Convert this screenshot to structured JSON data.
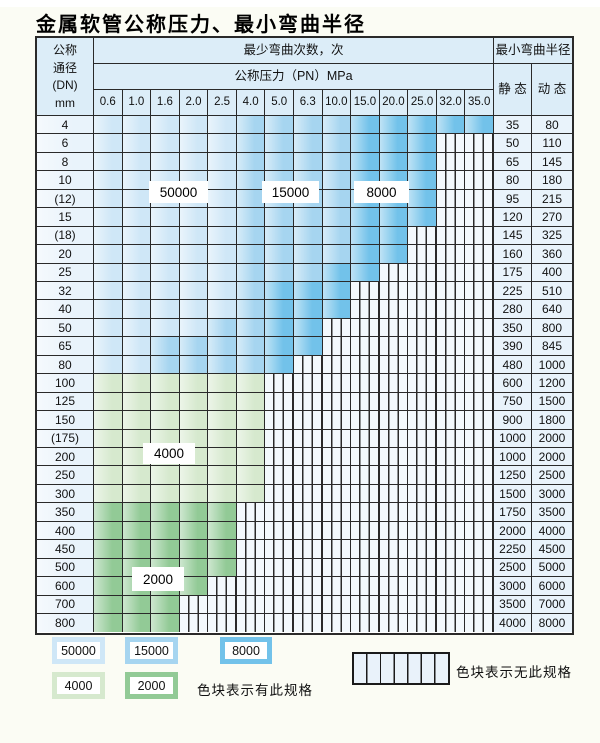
{
  "title": "金属软管公称压力、最小弯曲半径",
  "table": {
    "corner_lines": [
      "公称",
      "通径",
      "(DN)",
      "mm"
    ],
    "cycles_header": "最少弯曲次数，次",
    "pressure_header": "公称压力（PN）MPa",
    "radius_header": "最小弯曲半径",
    "static_label": "静 态",
    "dynamic_label": "动 态",
    "pressure_columns": [
      "0.6",
      "1.0",
      "1.6",
      "2.0",
      "2.5",
      "4.0",
      "5.0",
      "6.3",
      "10.0",
      "15.0",
      "20.0",
      "25.0",
      "32.0",
      "35.0"
    ],
    "rows": [
      {
        "dn": "4",
        "tone": "blue",
        "n": 14,
        "bands": [
          5,
          4
        ],
        "static": "35",
        "dynamic": "80"
      },
      {
        "dn": "6",
        "tone": "blue",
        "n": 12,
        "bands": [
          5,
          4
        ],
        "static": "50",
        "dynamic": "110"
      },
      {
        "dn": "8",
        "tone": "blue",
        "n": 12,
        "bands": [
          5,
          4
        ],
        "static": "65",
        "dynamic": "145"
      },
      {
        "dn": "10",
        "tone": "blue",
        "n": 12,
        "bands": [
          5,
          4
        ],
        "static": "80",
        "dynamic": "180"
      },
      {
        "dn": "(12)",
        "tone": "blue",
        "n": 12,
        "bands": [
          5,
          4
        ],
        "static": "95",
        "dynamic": "215"
      },
      {
        "dn": "15",
        "tone": "blue",
        "n": 12,
        "bands": [
          5,
          4
        ],
        "static": "120",
        "dynamic": "270"
      },
      {
        "dn": "(18)",
        "tone": "blue",
        "n": 11,
        "bands": [
          5,
          4
        ],
        "static": "145",
        "dynamic": "325"
      },
      {
        "dn": "20",
        "tone": "blue",
        "n": 11,
        "bands": [
          5,
          4
        ],
        "static": "160",
        "dynamic": "360"
      },
      {
        "dn": "25",
        "tone": "blue",
        "n": 10,
        "bands": [
          5,
          3
        ],
        "static": "175",
        "dynamic": "400"
      },
      {
        "dn": "32",
        "tone": "blue",
        "n": 9,
        "bands": [
          5,
          1
        ],
        "static": "225",
        "dynamic": "510"
      },
      {
        "dn": "40",
        "tone": "blue",
        "n": 9,
        "bands": [
          5,
          1
        ],
        "static": "280",
        "dynamic": "640"
      },
      {
        "dn": "50",
        "tone": "blue",
        "n": 8,
        "bands": [
          4,
          2
        ],
        "static": "350",
        "dynamic": "800"
      },
      {
        "dn": "65",
        "tone": "blue",
        "n": 8,
        "bands": [
          2,
          4
        ],
        "static": "390",
        "dynamic": "845"
      },
      {
        "dn": "80",
        "tone": "blue",
        "n": 7,
        "bands": [
          2,
          4
        ],
        "static": "480",
        "dynamic": "1000"
      },
      {
        "dn": "100",
        "tone": "g4",
        "n": 6,
        "static": "600",
        "dynamic": "1200"
      },
      {
        "dn": "125",
        "tone": "g4",
        "n": 6,
        "static": "750",
        "dynamic": "1500"
      },
      {
        "dn": "150",
        "tone": "g4",
        "n": 6,
        "static": "900",
        "dynamic": "1800"
      },
      {
        "dn": "(175)",
        "tone": "g4",
        "n": 6,
        "static": "1000",
        "dynamic": "2000"
      },
      {
        "dn": "200",
        "tone": "g4",
        "n": 6,
        "static": "1000",
        "dynamic": "2000"
      },
      {
        "dn": "250",
        "tone": "g4",
        "n": 6,
        "static": "1250",
        "dynamic": "2500"
      },
      {
        "dn": "300",
        "tone": "g4",
        "n": 6,
        "static": "1500",
        "dynamic": "3000"
      },
      {
        "dn": "350",
        "tone": "g2",
        "n": 5,
        "static": "1750",
        "dynamic": "3500"
      },
      {
        "dn": "400",
        "tone": "g2",
        "n": 5,
        "static": "2000",
        "dynamic": "4000"
      },
      {
        "dn": "450",
        "tone": "g2",
        "n": 5,
        "static": "2250",
        "dynamic": "4500"
      },
      {
        "dn": "500",
        "tone": "g2",
        "n": 5,
        "static": "2500",
        "dynamic": "5000"
      },
      {
        "dn": "600",
        "tone": "g2",
        "n": 4,
        "static": "3000",
        "dynamic": "6000"
      },
      {
        "dn": "700",
        "tone": "g2",
        "n": 3,
        "static": "3500",
        "dynamic": "7000"
      },
      {
        "dn": "800",
        "tone": "g2",
        "n": 3,
        "static": "4000",
        "dynamic": "8000"
      }
    ]
  },
  "overlays": [
    {
      "text": "50000"
    },
    {
      "text": "15000"
    },
    {
      "text": "8000"
    },
    {
      "text": "4000"
    },
    {
      "text": "2000"
    }
  ],
  "legend": {
    "items": [
      {
        "label": "50000",
        "color": "#cfe7f7"
      },
      {
        "label": "15000",
        "color": "#a6d5f0"
      },
      {
        "label": "8000",
        "color": "#72c2ea"
      },
      {
        "label": "4000",
        "color": "#d6e9ce"
      },
      {
        "label": "2000",
        "color": "#92ca96"
      }
    ],
    "has_spec_text": "色块表示有此规格",
    "no_spec_text": "色块表示无此规格"
  },
  "colors": {
    "blue_bands": [
      "#cfe7f7",
      "#a6d5f0",
      "#72c2ea"
    ],
    "green_bands": [
      "#d6e9ce",
      "#92ca96"
    ],
    "header_bg": "#dcedf8",
    "label_col_bg": "#e9f3fb",
    "hatch_bg": "#f3f9fd",
    "border": "#2a2a2a",
    "page_bg": "#fbfcf4"
  }
}
